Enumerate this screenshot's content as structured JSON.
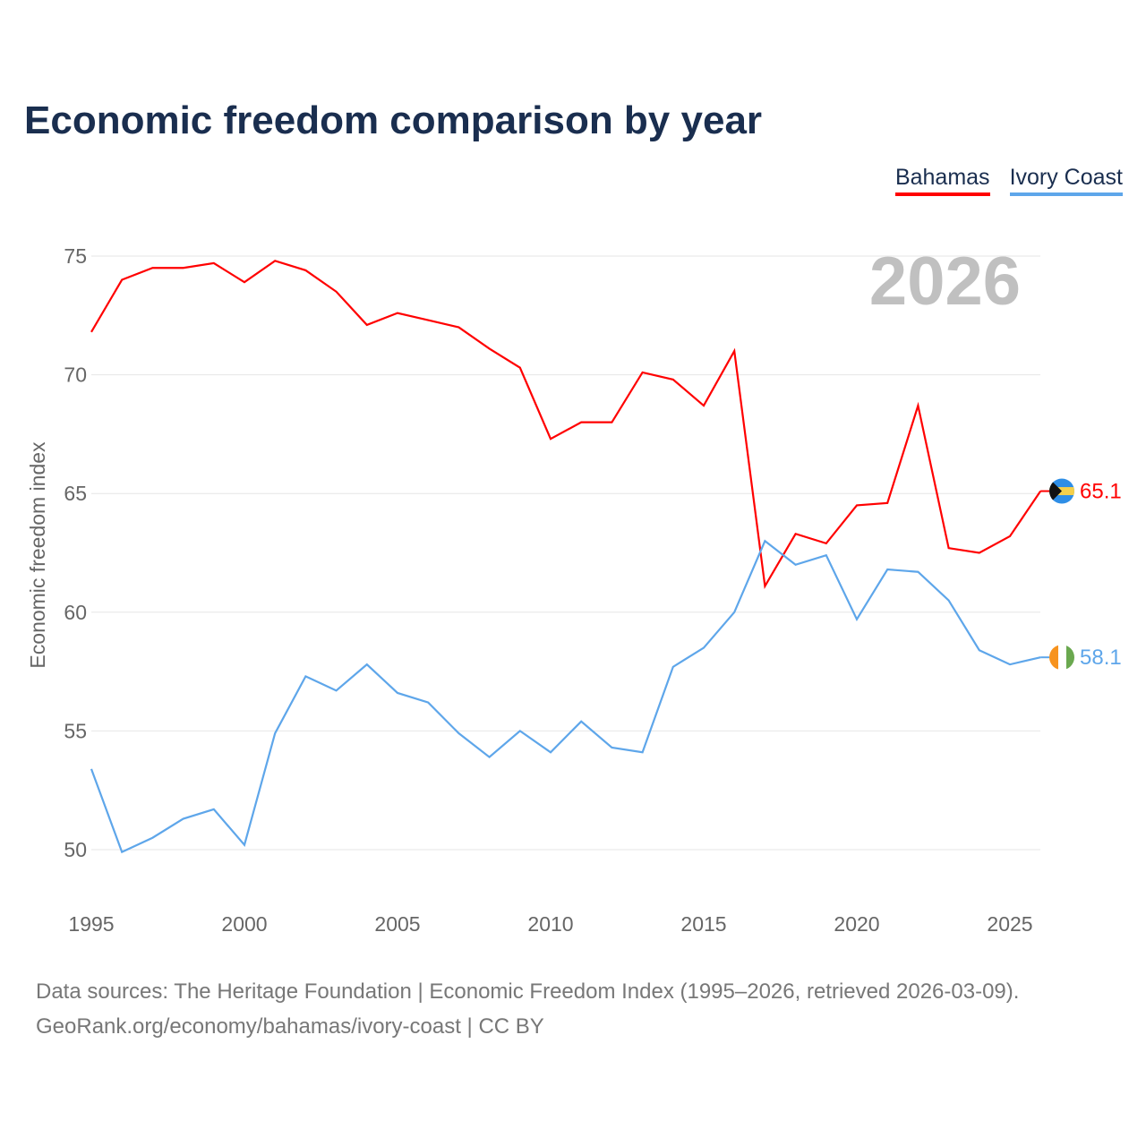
{
  "chart_data": {
    "type": "line",
    "title": "Economic freedom comparison by year",
    "ylabel": "Economic freedom index",
    "xlabel": "",
    "ylim": [
      48,
      77
    ],
    "xlim": [
      1995,
      2026
    ],
    "yticks": [
      50,
      55,
      60,
      65,
      70,
      75
    ],
    "xticks": [
      1995,
      2000,
      2005,
      2010,
      2015,
      2020,
      2025
    ],
    "grid": true,
    "legend_position": "top-right",
    "year_watermark": "2026",
    "x": [
      1995,
      1996,
      1997,
      1998,
      1999,
      2000,
      2001,
      2002,
      2003,
      2004,
      2005,
      2006,
      2007,
      2008,
      2009,
      2010,
      2011,
      2012,
      2013,
      2014,
      2015,
      2016,
      2017,
      2018,
      2019,
      2020,
      2021,
      2022,
      2023,
      2024,
      2025,
      2026
    ],
    "series": [
      {
        "name": "Bahamas",
        "color": "#ff0000",
        "end_label": "65.1",
        "flag": "bahamas-flag",
        "values": [
          71.8,
          74.0,
          74.5,
          74.5,
          74.7,
          73.9,
          74.8,
          74.4,
          73.5,
          72.1,
          72.6,
          72.3,
          72.0,
          71.1,
          70.3,
          67.3,
          68.0,
          68.0,
          70.1,
          69.8,
          68.7,
          71.0,
          61.1,
          63.3,
          62.9,
          64.5,
          64.6,
          68.7,
          62.7,
          62.5,
          63.2,
          65.1
        ]
      },
      {
        "name": "Ivory Coast",
        "color": "#5ea6ea",
        "end_label": "58.1",
        "flag": "ivory-coast-flag",
        "values": [
          53.4,
          49.9,
          50.5,
          51.3,
          51.7,
          50.2,
          54.9,
          57.3,
          56.7,
          57.8,
          56.6,
          56.2,
          54.9,
          53.9,
          55.0,
          54.1,
          55.4,
          54.3,
          54.1,
          57.7,
          58.5,
          60.0,
          63.0,
          62.0,
          62.4,
          59.7,
          61.8,
          61.7,
          60.5,
          58.4,
          57.8,
          58.1
        ]
      }
    ]
  },
  "footer": {
    "line1": "Data sources: The Heritage Foundation | Economic Freedom Index (1995–2026, retrieved 2026-03-09).",
    "line2": "GeoRank.org/economy/bahamas/ivory-coast | CC BY"
  }
}
